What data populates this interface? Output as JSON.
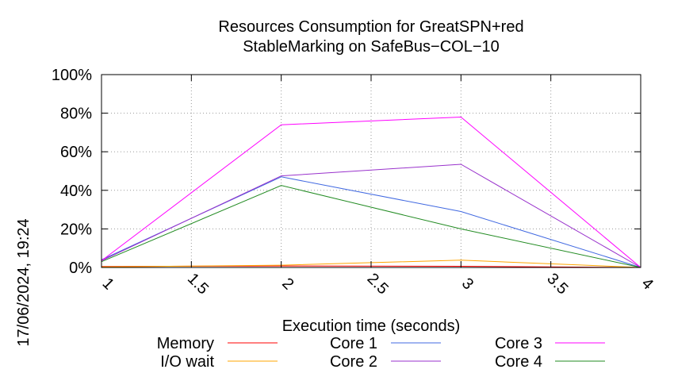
{
  "chart_data": {
    "type": "line",
    "title_lines": [
      "Resources Consumption for GreatSPN+red",
      "StableMarking on SafeBus−COL−10"
    ],
    "xlabel": "Execution time (seconds)",
    "ylabel": "",
    "timestamp": "17/06/2024, 19:24",
    "x_ticks": [
      "1",
      "1.5",
      "2",
      "2.5",
      "3",
      "3.5",
      "4"
    ],
    "y_ticks": [
      "0%",
      "20%",
      "40%",
      "60%",
      "80%",
      "100%"
    ],
    "xlim": [
      1,
      4
    ],
    "ylim": [
      0,
      100
    ],
    "grid": true,
    "legend_position": "bottom",
    "series": [
      {
        "name": "Memory",
        "color": "#ff0000",
        "x": [
          1,
          2,
          3,
          4
        ],
        "y": [
          0.5,
          0.8,
          0.6,
          0
        ]
      },
      {
        "name": "I/O wait",
        "color": "#ffa500",
        "x": [
          1,
          2,
          3,
          4
        ],
        "y": [
          0.3,
          1.2,
          3.8,
          0
        ]
      },
      {
        "name": "Core 1",
        "color": "#4169e1",
        "x": [
          1,
          2,
          3,
          4
        ],
        "y": [
          4,
          47,
          29,
          0
        ]
      },
      {
        "name": "Core 2",
        "color": "#9932cc",
        "x": [
          1,
          2,
          3,
          4
        ],
        "y": [
          3.5,
          47.5,
          53.5,
          0
        ]
      },
      {
        "name": "Core 3",
        "color": "#ff00ff",
        "x": [
          1,
          2,
          3,
          4
        ],
        "y": [
          3.5,
          74,
          78,
          0
        ]
      },
      {
        "name": "Core 4",
        "color": "#228b22",
        "x": [
          1,
          2,
          3,
          4
        ],
        "y": [
          3,
          42.5,
          20,
          0
        ]
      }
    ]
  }
}
